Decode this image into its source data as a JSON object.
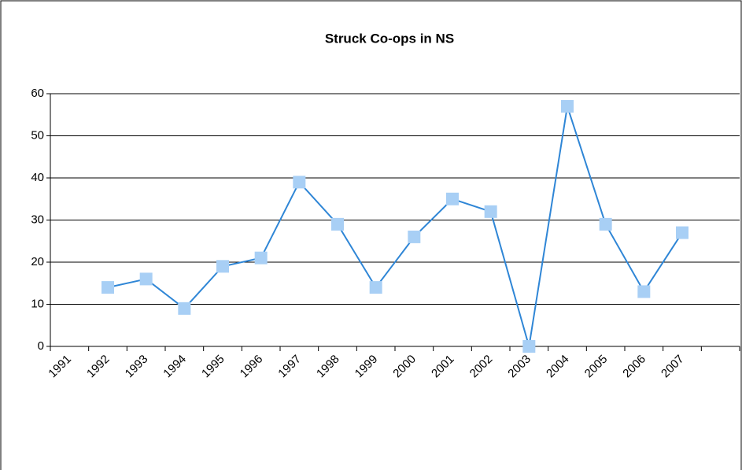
{
  "chart_data": {
    "type": "line",
    "title": "Struck Co-ops in NS",
    "categories": [
      "1991",
      "1992",
      "1993",
      "1994",
      "1995",
      "1996",
      "1997",
      "1998",
      "1999",
      "2000",
      "2001",
      "2002",
      "2003",
      "2004",
      "2005",
      "2006",
      "2007",
      null
    ],
    "series": [
      {
        "name": "Struck Co-ops",
        "color": "#2f86d6",
        "marker_color": "#a8cff5",
        "values": [
          null,
          14,
          16,
          9,
          19,
          21,
          39,
          29,
          14,
          26,
          35,
          32,
          0,
          57,
          29,
          13,
          27,
          null
        ]
      }
    ],
    "ylim": [
      0,
      60
    ],
    "yticks": [
      0,
      10,
      20,
      30,
      40,
      50,
      60
    ],
    "grid": true
  }
}
